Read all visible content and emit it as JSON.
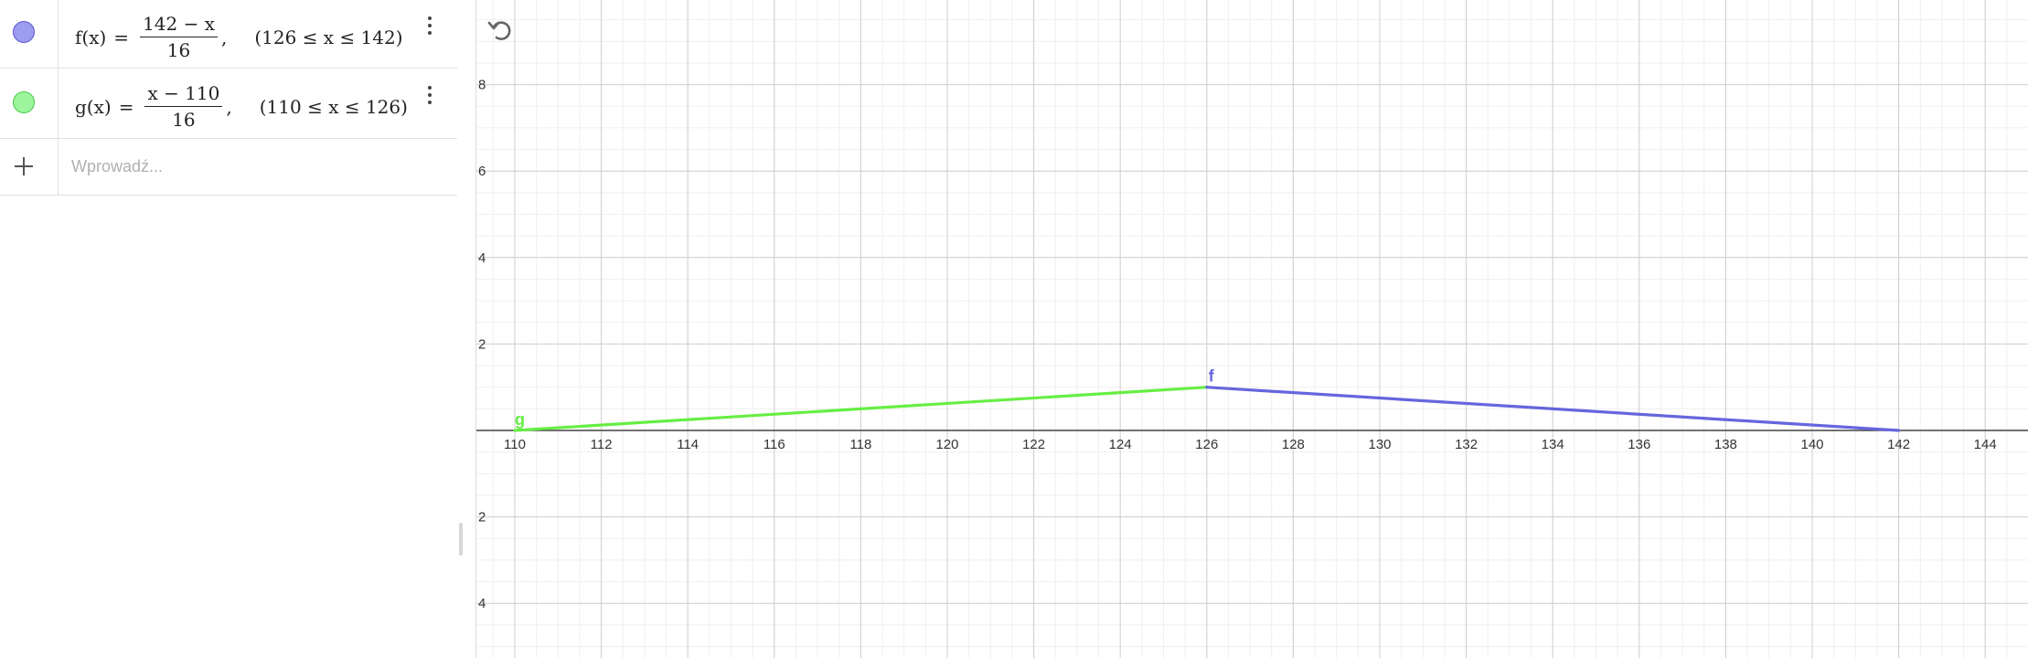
{
  "algebra": {
    "items": [
      {
        "id": "f",
        "color": "#9c9cf0",
        "border": "#5858d6",
        "name": "f(x)",
        "equals": "=",
        "numerator": "142 − x",
        "denominator": "16",
        "comma": ",",
        "domain": "(126 ≤ x ≤ 142)"
      },
      {
        "id": "g",
        "color": "#9cf59c",
        "border": "#48c848",
        "name": "g(x)",
        "equals": "=",
        "numerator": "x − 110",
        "denominator": "16",
        "comma": ",",
        "domain": "(110 ≤ x ≤ 126)"
      }
    ],
    "input": {
      "placeholder": "Wprowadź..."
    },
    "menu_icon": "more-vertical-icon",
    "add_icon": "plus-icon"
  },
  "graph": {
    "undo_icon": "undo-icon",
    "x_ticks": [
      110,
      112,
      114,
      116,
      118,
      120,
      122,
      124,
      126,
      128,
      130,
      132,
      134,
      136,
      138,
      140,
      142,
      144
    ],
    "y_ticks_pos": [
      "8",
      "6",
      "4",
      "2"
    ],
    "y_ticks_neg": [
      "2",
      "4"
    ],
    "grid": true,
    "functions": [
      {
        "label": "g",
        "color": "#66ee44",
        "points": [
          [
            110,
            0
          ],
          [
            126,
            1
          ]
        ]
      },
      {
        "label": "f",
        "color": "#6666dd",
        "points": [
          [
            126,
            1
          ],
          [
            142,
            0
          ]
        ]
      }
    ]
  }
}
